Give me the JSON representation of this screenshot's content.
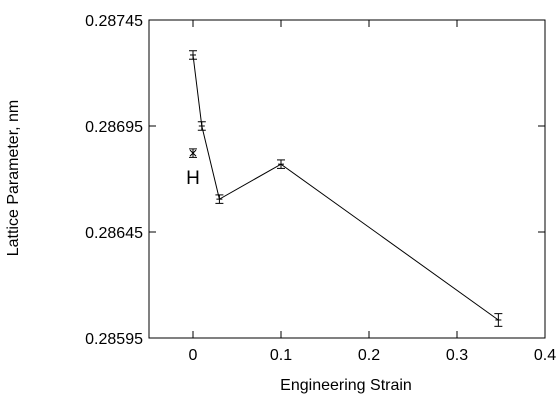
{
  "chart_data": {
    "type": "line",
    "xlabel": "Engineering Strain",
    "ylabel": "Lattice Parameter, nm",
    "xlim": [
      -0.05,
      0.4
    ],
    "ylim": [
      0.28595,
      0.28745
    ],
    "xticks": [
      0,
      0.1,
      0.2,
      0.3,
      0.4
    ],
    "xtick_labels": [
      "0",
      "0.1",
      "0.2",
      "0.3",
      "0.4"
    ],
    "yticks": [
      0.28595,
      0.28645,
      0.28695,
      0.28745
    ],
    "ytick_labels": [
      "0.28595",
      "0.28645",
      "0.28695",
      "0.28745"
    ],
    "grid": false,
    "series": [
      {
        "x": [
          0,
          0.01,
          0.03,
          0.1,
          0.347
        ],
        "y": [
          0.287285,
          0.28695,
          0.286605,
          0.28677,
          0.286035
        ],
        "err": [
          2e-05,
          2e-05,
          2e-05,
          2e-05,
          3e-05
        ]
      }
    ],
    "annotations": [
      {
        "label": "H",
        "x": 0,
        "y": 0.286822,
        "err": 2e-05
      }
    ]
  }
}
